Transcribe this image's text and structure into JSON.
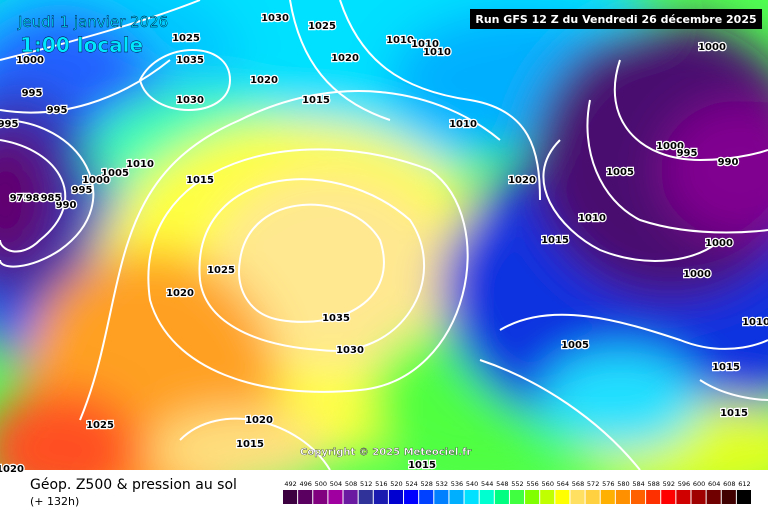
{
  "header": {
    "date": "Jeudi 1 janvier 2026",
    "time": "1:00 locale",
    "run": "Run GFS 12 Z du Vendredi 26 décembre 2025"
  },
  "copyright": "Copyright © 2025 Meteociel.fr",
  "footer": {
    "title": "Géop. Z500 & pression au sol",
    "lead": "(+ 132h)"
  },
  "isobar_labels": [
    "1030",
    "1025",
    "1025",
    "1035",
    "1030",
    "1000",
    "995",
    "995",
    "995",
    "1020",
    "1020",
    "1015",
    "1010",
    "1010",
    "1010",
    "1010",
    "1005",
    "1010",
    "1000",
    "995",
    "990",
    "975",
    "980",
    "985",
    "1015",
    "1025",
    "1020",
    "1035",
    "1030",
    "1020",
    "1015",
    "1010",
    "1005",
    "1000",
    "995",
    "990",
    "1000",
    "1000",
    "1000",
    "1005",
    "1010",
    "1015",
    "1015",
    "1025",
    "1020",
    "1015",
    "1015",
    "1020"
  ],
  "legend": {
    "values": [
      492,
      496,
      500,
      504,
      508,
      512,
      516,
      520,
      524,
      528,
      532,
      536,
      540,
      544,
      548,
      552,
      556,
      560,
      564,
      568,
      572,
      576,
      580,
      584,
      588,
      592,
      596,
      600,
      604,
      608,
      612
    ],
    "colors": [
      "#3c0040",
      "#5a0060",
      "#800080",
      "#a000a0",
      "#6a1aa0",
      "#30329a",
      "#1a1ab0",
      "#0000d0",
      "#0000ff",
      "#0040ff",
      "#0080ff",
      "#00b0ff",
      "#00e0ff",
      "#00ffd0",
      "#00ff80",
      "#40ff40",
      "#80ff00",
      "#c0ff00",
      "#ffff00",
      "#ffe060",
      "#ffd040",
      "#ffb000",
      "#ff9000",
      "#ff6000",
      "#ff3000",
      "#ff0000",
      "#d00000",
      "#a00000",
      "#700000",
      "#400000",
      "#000000"
    ]
  }
}
